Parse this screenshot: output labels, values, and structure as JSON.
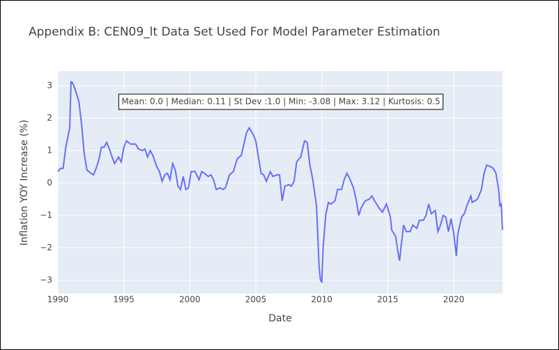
{
  "chart_data": {
    "type": "line",
    "title": "Appendix B: CEN09_lt Data Set Used For Model Parameter Estimation",
    "x_label": "Date",
    "y_label": "Inflation YOY Increase (%)",
    "annotation": "Mean: 0.0 | Median: 0.11 | St Dev :1.0 | Min: -3.08 | Max: 3.12 | Kurtosis: 0.5",
    "xlim": [
      1990,
      2023.7
    ],
    "xticks": [
      1990,
      1995,
      2000,
      2005,
      2010,
      2015,
      2020
    ],
    "ylim": [
      -3.41,
      3.45
    ],
    "yticks": [
      {
        "value": -3,
        "label": "−3"
      },
      {
        "value": -2,
        "label": "−2"
      },
      {
        "value": -1,
        "label": "−1"
      },
      0,
      1,
      2,
      3
    ],
    "grid": true,
    "background": "#e5ecf6",
    "series": [
      {
        "color": "#636efa",
        "x": [
          1990.0,
          1990.2,
          1990.4,
          1990.6,
          1990.8,
          1990.9,
          1991.0,
          1991.1,
          1991.3,
          1991.6,
          1991.8,
          1992.0,
          1992.2,
          1992.5,
          1992.7,
          1992.9,
          1993.1,
          1993.3,
          1993.5,
          1993.7,
          1993.9,
          1994.2,
          1994.3,
          1994.6,
          1994.8,
          1995.0,
          1995.2,
          1995.5,
          1995.7,
          1995.9,
          1996.1,
          1996.4,
          1996.6,
          1996.8,
          1997.0,
          1997.2,
          1997.5,
          1997.7,
          1997.9,
          1998.1,
          1998.3,
          1998.5,
          1998.7,
          1998.9,
          1999.1,
          1999.3,
          1999.5,
          1999.7,
          1999.9,
          2000.1,
          2000.4,
          2000.7,
          2000.9,
          2001.1,
          2001.4,
          2001.6,
          2001.8,
          2002.0,
          2002.3,
          2002.5,
          2002.7,
          2003.0,
          2003.3,
          2003.6,
          2003.9,
          2004.1,
          2004.3,
          2004.5,
          2004.8,
          2005.0,
          2005.2,
          2005.4,
          2005.6,
          2005.8,
          2006.1,
          2006.3,
          2006.6,
          2006.8,
          2007.0,
          2007.2,
          2007.5,
          2007.7,
          2007.9,
          2008.1,
          2008.4,
          2008.7,
          2008.9,
          2009.1,
          2009.3,
          2009.6,
          2009.8,
          2009.9,
          2010.0,
          2010.1,
          2010.3,
          2010.5,
          2010.7,
          2011.0,
          2011.2,
          2011.5,
          2011.7,
          2011.9,
          2012.1,
          2012.4,
          2012.6,
          2012.8,
          2013.0,
          2013.3,
          2013.6,
          2013.8,
          2014.0,
          2014.3,
          2014.6,
          2014.9,
          2015.2,
          2015.3,
          2015.6,
          2015.8,
          2015.9,
          2016.0,
          2016.2,
          2016.4,
          2016.7,
          2016.9,
          2017.2,
          2017.4,
          2017.7,
          2017.9,
          2018.1,
          2018.3,
          2018.6,
          2018.8,
          2019.0,
          2019.2,
          2019.4,
          2019.6,
          2019.8,
          2020.0,
          2020.2,
          2020.3,
          2020.6,
          2020.8,
          2021.0,
          2021.3,
          2021.4,
          2021.6,
          2021.8,
          2022.1,
          2022.3,
          2022.5,
          2022.8,
          2023.0,
          2023.2,
          2023.4,
          2023.5,
          2023.6,
          2023.7
        ],
        "values": [
          0.35,
          0.45,
          0.45,
          1.1,
          1.5,
          1.7,
          3.12,
          3.1,
          2.9,
          2.5,
          1.8,
          0.9,
          0.4,
          0.3,
          0.25,
          0.45,
          0.7,
          1.1,
          1.1,
          1.25,
          1.05,
          0.7,
          0.6,
          0.8,
          0.65,
          1.1,
          1.3,
          1.2,
          1.2,
          1.2,
          1.05,
          1.0,
          1.05,
          0.8,
          1.0,
          0.85,
          0.5,
          0.35,
          0.05,
          0.25,
          0.3,
          0.1,
          0.6,
          0.4,
          -0.1,
          -0.2,
          0.2,
          -0.2,
          -0.15,
          0.35,
          0.35,
          0.1,
          0.35,
          0.3,
          0.2,
          0.25,
          0.1,
          -0.2,
          -0.15,
          -0.2,
          -0.15,
          0.25,
          0.35,
          0.75,
          0.85,
          1.2,
          1.55,
          1.7,
          1.5,
          1.3,
          0.8,
          0.3,
          0.25,
          0.05,
          0.35,
          0.2,
          0.25,
          0.25,
          -0.55,
          -0.1,
          -0.05,
          -0.1,
          0.05,
          0.65,
          0.8,
          1.3,
          1.25,
          0.55,
          0.15,
          -0.7,
          -2.6,
          -3.0,
          -3.05,
          -2.0,
          -1.0,
          -0.6,
          -0.65,
          -0.55,
          -0.2,
          -0.2,
          0.1,
          0.3,
          0.15,
          -0.15,
          -0.5,
          -1.0,
          -0.75,
          -0.55,
          -0.5,
          -0.4,
          -0.55,
          -0.75,
          -0.9,
          -0.65,
          -1.05,
          -1.45,
          -1.65,
          -2.2,
          -2.4,
          -2.0,
          -1.3,
          -1.5,
          -1.5,
          -1.3,
          -1.4,
          -1.15,
          -1.15,
          -1.0,
          -0.65,
          -0.95,
          -0.85,
          -1.5,
          -1.3,
          -1.0,
          -1.05,
          -1.5,
          -1.1,
          -1.55,
          -2.25,
          -1.6,
          -1.05,
          -0.95,
          -0.7,
          -0.4,
          -0.6,
          -0.55,
          -0.5,
          -0.2,
          0.3,
          0.55,
          0.5,
          0.45,
          0.3,
          -0.2,
          -0.7,
          -0.65,
          -1.45
        ]
      }
    ]
  }
}
